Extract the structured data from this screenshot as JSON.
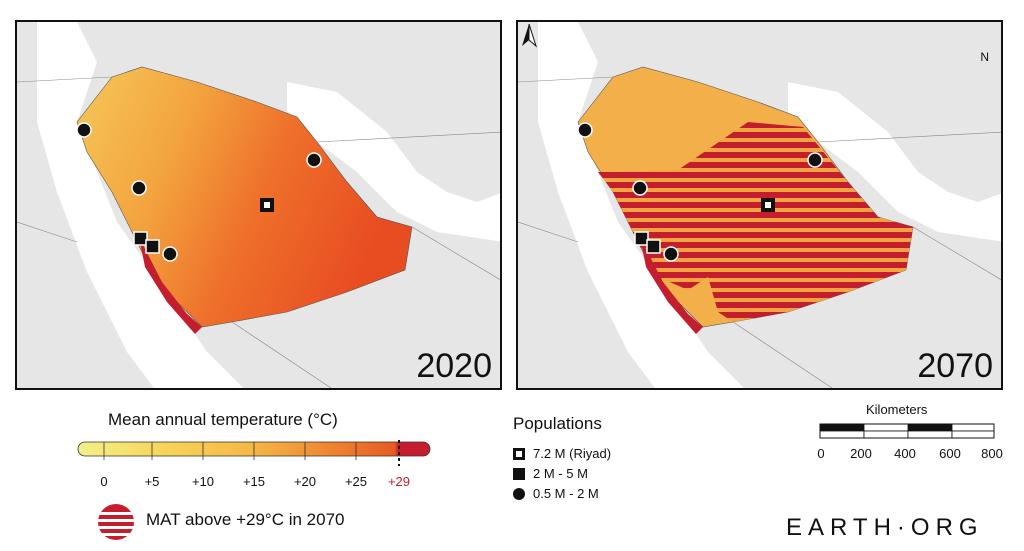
{
  "panels": [
    {
      "year": "2020",
      "overlay": false
    },
    {
      "year": "2070",
      "overlay": true
    }
  ],
  "north_label": "N",
  "temperature_legend": {
    "title": "Mean annual temperature (°C)",
    "ticks": [
      "0",
      "+5",
      "+10",
      "+15",
      "+20",
      "+25",
      "+29"
    ],
    "threshold_tick": "+29",
    "threshold_color": "#c41e2e",
    "colors": [
      "#f4f08a",
      "#f7d458",
      "#f5b646",
      "#f29a3a",
      "#ee7d2e",
      "#e85a23",
      "#c41e2e"
    ],
    "overlay_label": "MAT above +29°C in 2070"
  },
  "populations": {
    "title": "Populations",
    "items": [
      {
        "label": "7.2 M (Riyad)",
        "symbol": "hollow-square"
      },
      {
        "label": "2 M - 5 M",
        "symbol": "square"
      },
      {
        "label": "0.5 M - 2 M",
        "symbol": "circle"
      }
    ]
  },
  "scale_bar": {
    "title": "Kilometers",
    "ticks": [
      "0",
      "200",
      "400",
      "600",
      "800"
    ]
  },
  "brand": "EARTH·ORG"
}
